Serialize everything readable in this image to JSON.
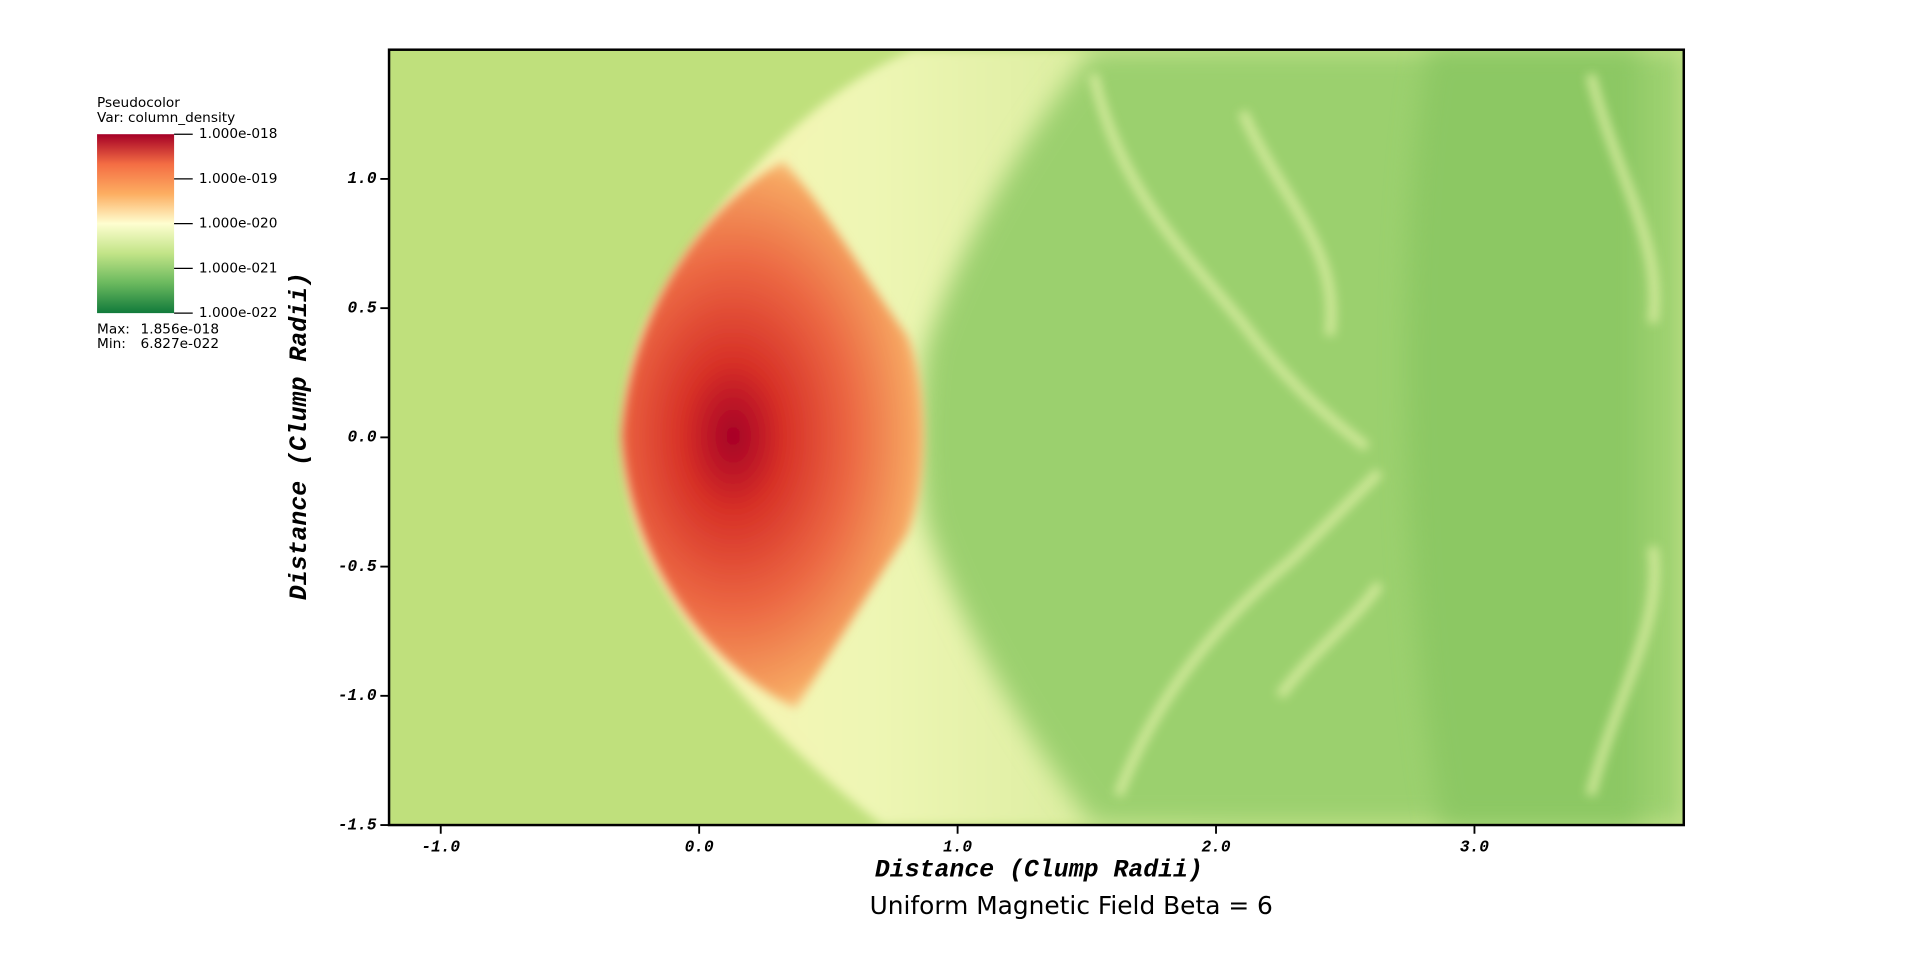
{
  "chart_data": {
    "type": "pseudocolor",
    "title": "Uniform Magnetic Field Beta = 6",
    "x_label": "Distance (Clump Radii)",
    "y_label": "Distance (Clump Radii)",
    "xlim": [
      -1.2,
      3.81
    ],
    "ylim": [
      -1.5,
      1.5
    ],
    "xticks": [
      {
        "value": -1,
        "label": "-1.0"
      },
      {
        "value": 0,
        "label": "0.0"
      },
      {
        "value": 1,
        "label": "1.0"
      },
      {
        "value": 2,
        "label": "2.0"
      },
      {
        "value": 3,
        "label": "3.0"
      }
    ],
    "yticks": [
      {
        "value": 1,
        "label": "1.0"
      },
      0.5,
      {
        "value": 0,
        "label": "0.0"
      },
      -0.5,
      {
        "value": -1,
        "label": "-1.0"
      },
      -1.5
    ],
    "colormap": [
      "#a50026",
      "#f46d43",
      "#fdae61",
      "#fefed0",
      "#c2e487",
      "#6ab95e",
      "#117a3b"
    ],
    "legend": {
      "title": "Pseudocolor",
      "variable": "Var: column_density",
      "log": true,
      "lim": [
        1e-22,
        1e-18
      ],
      "ticks": [
        {
          "value": 1e-18,
          "label": "1.000e-018"
        },
        {
          "value": 1e-19,
          "label": "1.000e-019"
        },
        {
          "value": 1e-20,
          "label": "1.000e-020"
        },
        {
          "value": 1e-21,
          "label": "1.000e-021"
        },
        {
          "value": 1e-22,
          "label": "1.000e-022"
        }
      ],
      "max_label": "Max:",
      "max": {
        "value": 1.856e-18,
        "label": "1.856e-018"
      },
      "min_label": "Min:",
      "min": {
        "value": 6.827e-22,
        "label": "6.827e-022"
      }
    }
  }
}
